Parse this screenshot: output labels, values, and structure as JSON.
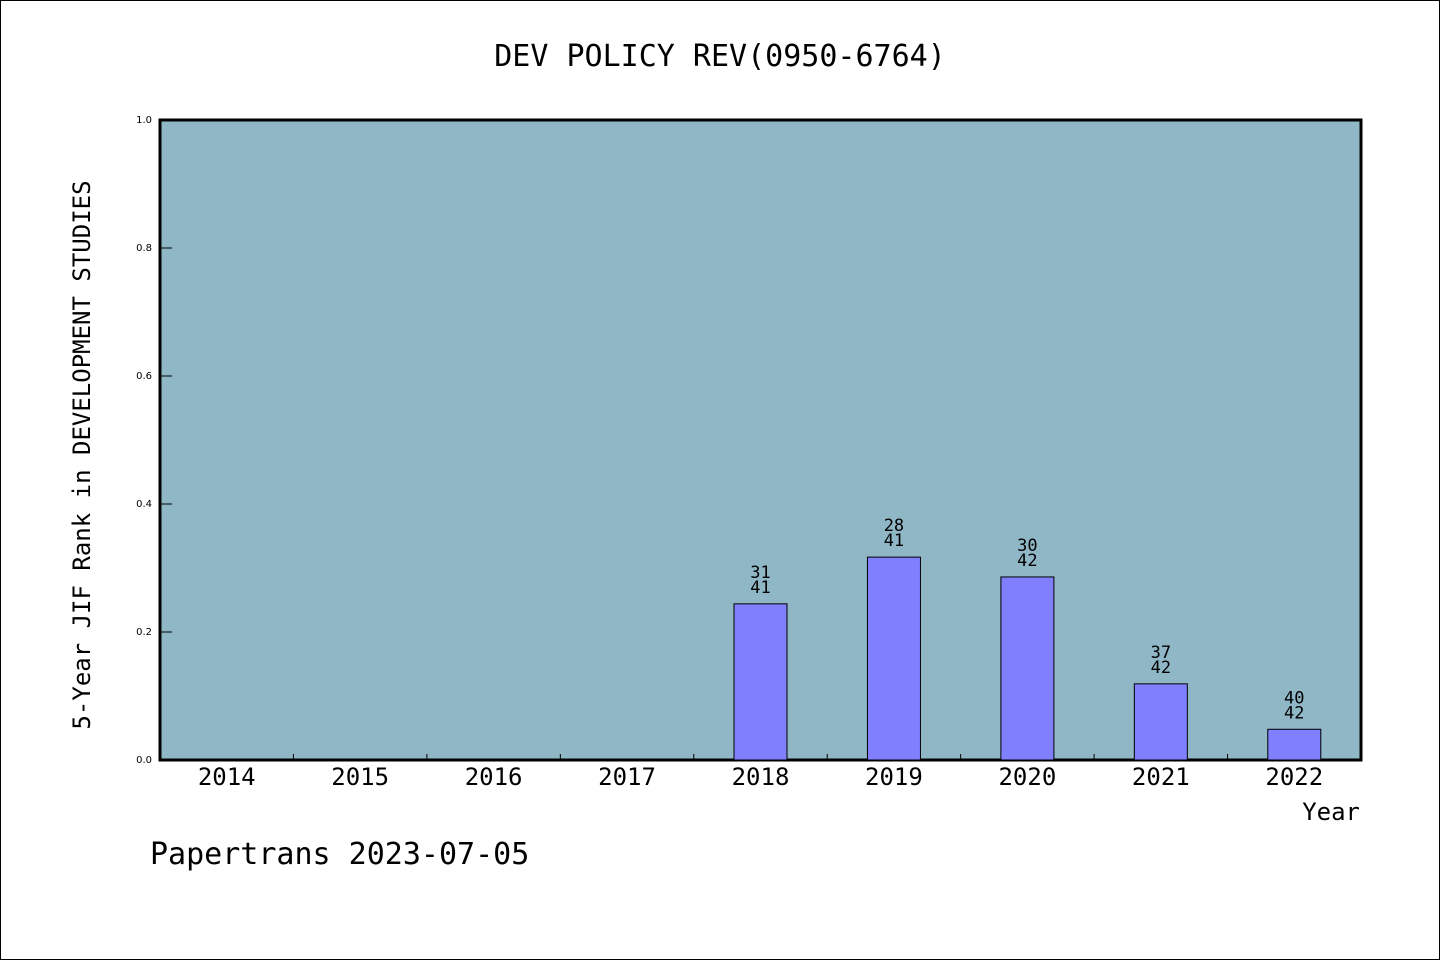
{
  "chart_data": {
    "type": "bar",
    "title": "DEV POLICY REV(0950-6764)",
    "xlabel": "Year",
    "ylabel": "5-Year JIF Rank in DEVELOPMENT STUDIES",
    "ylim": [
      0,
      1
    ],
    "yticks": [
      "0.0",
      "0.2",
      "0.4",
      "0.6",
      "0.8",
      "1.0"
    ],
    "categories": [
      "2014",
      "2015",
      "2016",
      "2017",
      "2018",
      "2019",
      "2020",
      "2021",
      "2022"
    ],
    "values": [
      null,
      null,
      null,
      null,
      0.244,
      0.317,
      0.286,
      0.119,
      0.048
    ],
    "labels": [
      null,
      null,
      null,
      null,
      {
        "rank": "31",
        "total": "41"
      },
      {
        "rank": "28",
        "total": "41"
      },
      {
        "rank": "30",
        "total": "42"
      },
      {
        "rank": "37",
        "total": "42"
      },
      {
        "rank": "40",
        "total": "42"
      }
    ],
    "colors": {
      "plot_bg": "#8fb7c6",
      "bar": "#8080ff"
    },
    "grid": false,
    "footer": "Papertrans 2023-07-05"
  }
}
